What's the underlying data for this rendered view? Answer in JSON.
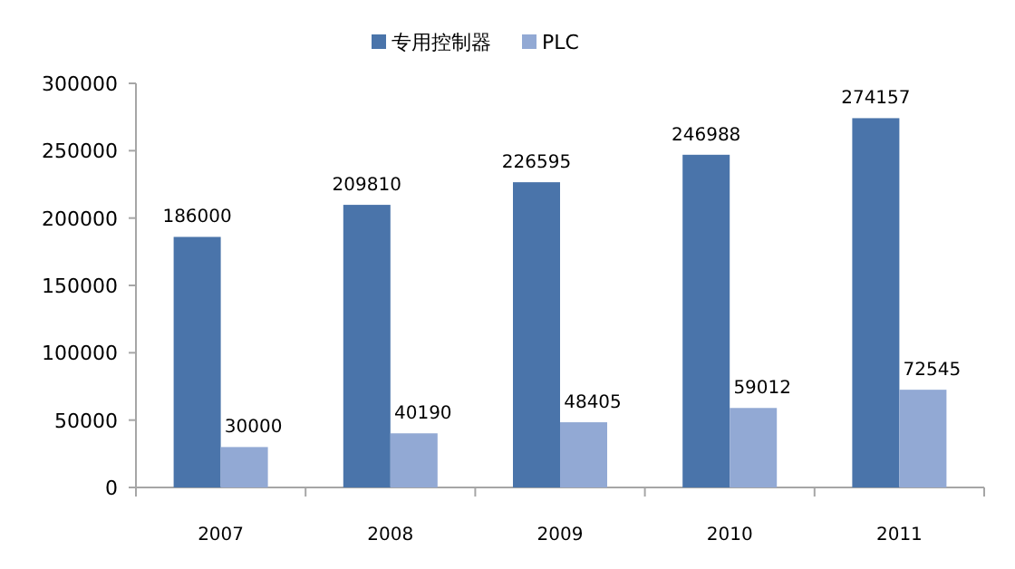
{
  "chart_data": {
    "type": "bar",
    "categories": [
      "2007",
      "2008",
      "2009",
      "2010",
      "2011"
    ],
    "series": [
      {
        "name": "专用控制器",
        "color": "#4a74aa",
        "values": [
          186000,
          209810,
          226595,
          246988,
          274157
        ]
      },
      {
        "name": "PLC",
        "color": "#92a9d4",
        "values": [
          30000,
          40190,
          48405,
          59012,
          72545
        ]
      }
    ],
    "ylim": [
      0,
      300000
    ],
    "yticks": [
      0,
      50000,
      100000,
      150000,
      200000,
      250000,
      300000
    ],
    "data_labels": true,
    "legend": "top",
    "grid": false
  }
}
